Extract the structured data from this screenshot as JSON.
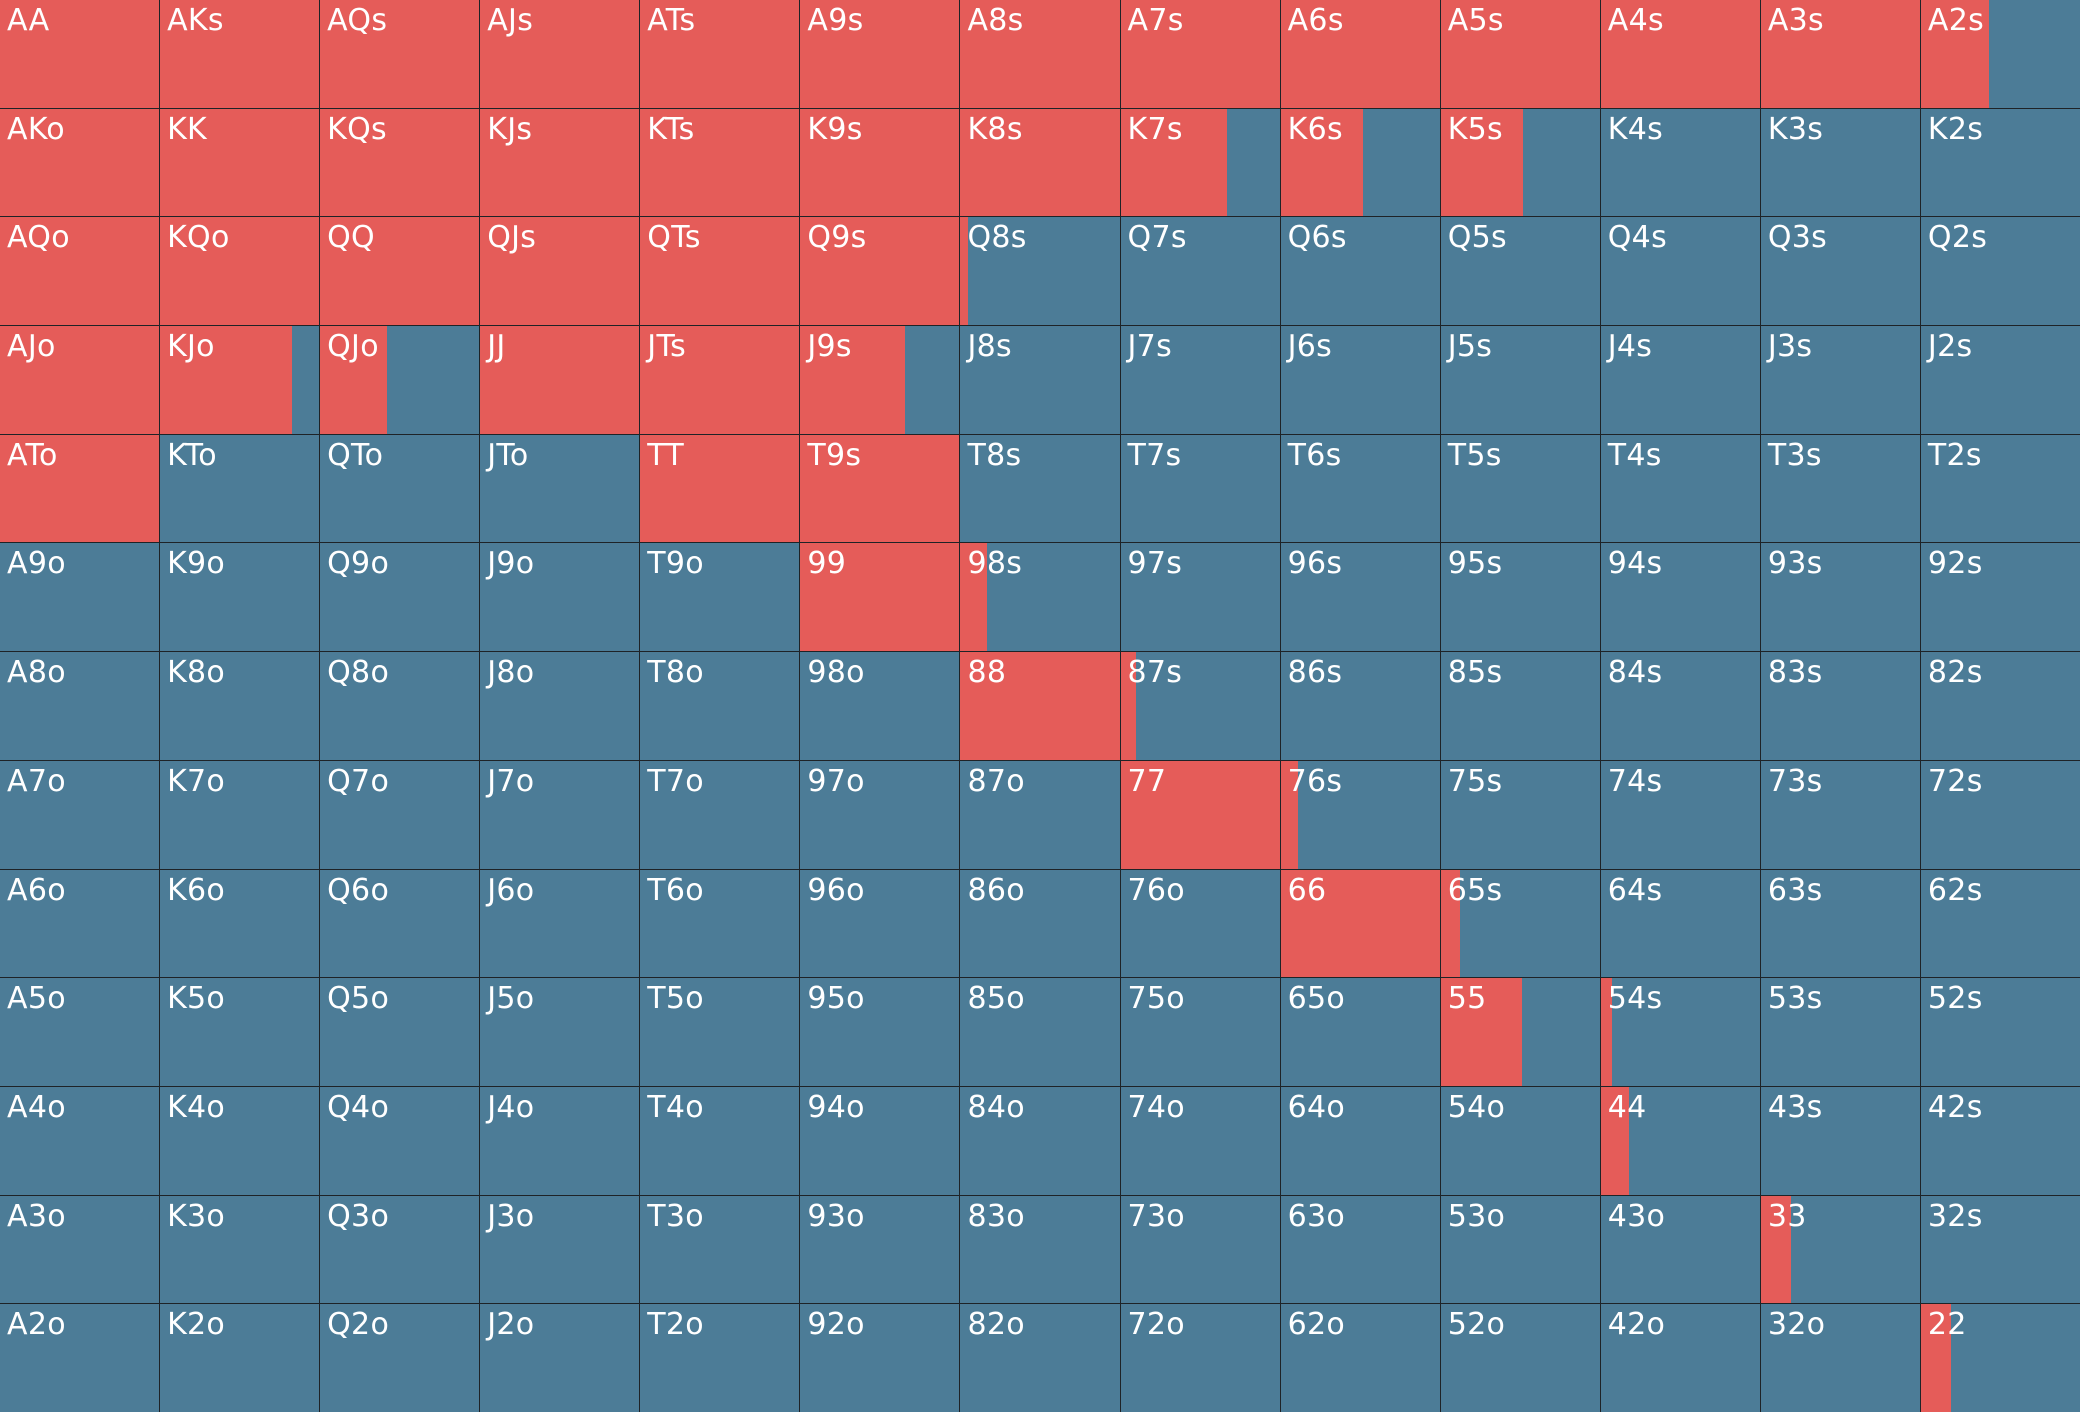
{
  "colors": {
    "raise": "#e55c59",
    "fold": "#4c7c97"
  },
  "range_grid": {
    "hands": [
      "AA",
      "AKs",
      "AQs",
      "AJs",
      "ATs",
      "A9s",
      "A8s",
      "A7s",
      "A6s",
      "A5s",
      "A4s",
      "A3s",
      "A2s",
      "AKo",
      "KK",
      "KQs",
      "KJs",
      "KTs",
      "K9s",
      "K8s",
      "K7s",
      "K6s",
      "K5s",
      "K4s",
      "K3s",
      "K2s",
      "AQo",
      "KQo",
      "QQ",
      "QJs",
      "QTs",
      "Q9s",
      "Q8s",
      "Q7s",
      "Q6s",
      "Q5s",
      "Q4s",
      "Q3s",
      "Q2s",
      "AJo",
      "KJo",
      "QJo",
      "JJ",
      "JTs",
      "J9s",
      "J8s",
      "J7s",
      "J6s",
      "J5s",
      "J4s",
      "J3s",
      "J2s",
      "ATo",
      "KTo",
      "QTo",
      "JTo",
      "TT",
      "T9s",
      "T8s",
      "T7s",
      "T6s",
      "T5s",
      "T4s",
      "T3s",
      "T2s",
      "A9o",
      "K9o",
      "Q9o",
      "J9o",
      "T9o",
      "99",
      "98s",
      "97s",
      "96s",
      "95s",
      "94s",
      "93s",
      "92s",
      "A8o",
      "K8o",
      "Q8o",
      "J8o",
      "T8o",
      "98o",
      "88",
      "87s",
      "86s",
      "85s",
      "84s",
      "83s",
      "82s",
      "A7o",
      "K7o",
      "Q7o",
      "J7o",
      "T7o",
      "97o",
      "87o",
      "77",
      "76s",
      "75s",
      "74s",
      "73s",
      "72s",
      "A6o",
      "K6o",
      "Q6o",
      "J6o",
      "T6o",
      "96o",
      "86o",
      "76o",
      "66",
      "65s",
      "64s",
      "63s",
      "62s",
      "A5o",
      "K5o",
      "Q5o",
      "J5o",
      "T5o",
      "95o",
      "85o",
      "75o",
      "65o",
      "55",
      "54s",
      "53s",
      "52s",
      "A4o",
      "K4o",
      "Q4o",
      "J4o",
      "T4o",
      "94o",
      "84o",
      "74o",
      "64o",
      "54o",
      "44",
      "43s",
      "42s",
      "A3o",
      "K3o",
      "Q3o",
      "J3o",
      "T3o",
      "93o",
      "83o",
      "73o",
      "63o",
      "53o",
      "43o",
      "33",
      "32s",
      "A2o",
      "K2o",
      "Q2o",
      "J2o",
      "T2o",
      "92o",
      "82o",
      "72o",
      "62o",
      "52o",
      "42o",
      "32o",
      "22"
    ],
    "raise_fraction": [
      1,
      1,
      1,
      1,
      1,
      1,
      1,
      1,
      1,
      1,
      1,
      1,
      0.43,
      1,
      1,
      1,
      1,
      1,
      1,
      1,
      0.67,
      0.52,
      0.52,
      0,
      0,
      0,
      1,
      1,
      1,
      1,
      1,
      1,
      0.05,
      0,
      0,
      0,
      0,
      0,
      0,
      1,
      0.83,
      0.42,
      1,
      1,
      0.66,
      0,
      0,
      0,
      0,
      0,
      0,
      0,
      1,
      0,
      0,
      0,
      1,
      1,
      0,
      0,
      0,
      0,
      0,
      0,
      0,
      0,
      0,
      0,
      0,
      0,
      1,
      0.17,
      0,
      0,
      0,
      0,
      0,
      0,
      0,
      0,
      0,
      0,
      0,
      0,
      1,
      0.1,
      0,
      0,
      0,
      0,
      0,
      0,
      0,
      0,
      0,
      0,
      0,
      0,
      1,
      0.11,
      0,
      0,
      0,
      0,
      0,
      0,
      0,
      0,
      0,
      0,
      0,
      0,
      1,
      0.12,
      0,
      0,
      0,
      0,
      0,
      0,
      0,
      0,
      0,
      0,
      0,
      0,
      0.51,
      0.07,
      0,
      0,
      0,
      0,
      0,
      0,
      0,
      0,
      0,
      0,
      0,
      0,
      0.18,
      0,
      0,
      0,
      0,
      0,
      0,
      0,
      0,
      0,
      0,
      0,
      0,
      0,
      0.19,
      0,
      0,
      0,
      0,
      0,
      0,
      0,
      0,
      0,
      0,
      0,
      0,
      0,
      0.19
    ]
  }
}
